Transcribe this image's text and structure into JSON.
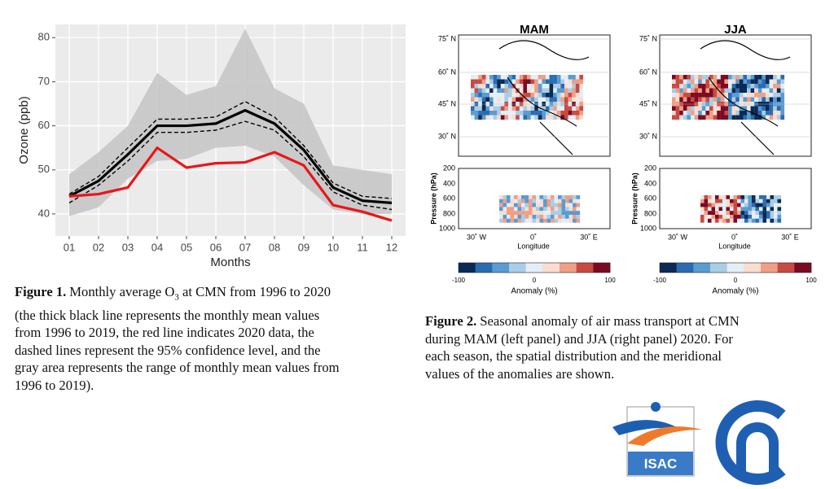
{
  "chart_data": {
    "type": "line",
    "xlabel": "Months",
    "ylabel": "Ozone (ppb)",
    "categories": [
      "01",
      "02",
      "03",
      "04",
      "05",
      "06",
      "07",
      "08",
      "09",
      "10",
      "11",
      "12"
    ],
    "range": {
      "color": "#c4c4c4",
      "lower": [
        39.5,
        41.5,
        48,
        52,
        52.5,
        55,
        55.5,
        53,
        46.5,
        41,
        40,
        40
      ],
      "upper": [
        49,
        54,
        60,
        72,
        67,
        69,
        82,
        68.5,
        65,
        51,
        50,
        49
      ]
    },
    "series": [
      {
        "color": "#000000",
        "dashed": true,
        "values": [
          44.5,
          48.5,
          55,
          61.5,
          61.5,
          62,
          65.5,
          62,
          55.5,
          47,
          44,
          43.5
        ]
      },
      {
        "color": "#000000",
        "dashed": true,
        "values": [
          42.5,
          46.5,
          52,
          58.5,
          58.5,
          59,
          61,
          59,
          53,
          45,
          42,
          41
        ]
      },
      {
        "color": "#000000",
        "dashed": false,
        "values": [
          44,
          47.5,
          53.5,
          60,
          60,
          60.5,
          63.5,
          60.5,
          54.5,
          46,
          43,
          42.5
        ]
      },
      {
        "color": "#e8161b",
        "dashed": false,
        "values": [
          44,
          44.5,
          46,
          55,
          50.5,
          51.5,
          51.7,
          54,
          51,
          42,
          40.5,
          38.5
        ]
      }
    ],
    "ylim": [
      35,
      83
    ],
    "yticks": [
      40,
      50,
      60,
      70,
      80
    ],
    "grid": true
  },
  "figure1_caption": {
    "label": "Figure 1.",
    "text_before": "Monthly average O",
    "subscript": "3",
    "text_after": " at CMN from 1996 to 2020",
    "lines": [
      "(the thick black line represents the monthly mean values",
      "from 1996 to 2019, the red line indicates 2020 data, the",
      "dashed lines represent the 95% confidence level, and the",
      "gray area represents the range of monthly mean values from",
      "1996 to 2019)."
    ]
  },
  "figure2": {
    "panels": [
      "MAM",
      "JJA"
    ],
    "lat_labels": [
      "75˚ N",
      "60˚ N",
      "45˚ N",
      "30˚ N"
    ],
    "pressure_label": "Pressure (hPa)",
    "pressure_ticks": [
      200,
      400,
      600,
      800,
      1000
    ],
    "lon_ticks": [
      "30˚ W",
      "0˚",
      "30˚ E"
    ],
    "lon_label": "Longitude",
    "colorbar_ticks": [
      -100,
      0,
      100
    ],
    "colorbar_label": "Anomaly (%)",
    "colorbar_colors": [
      "#0a2a55",
      "#2b6cb0",
      "#5a9bd0",
      "#a9cde6",
      "#e4eef6",
      "#f8ddd0",
      "#ee9f86",
      "#c94a43",
      "#7a0b22"
    ]
  },
  "figure2_caption": {
    "label": "Figure 2.",
    "lines": [
      "Seasonal anomaly of air mass transport at CMN",
      "during MAM (left panel) and JJA (right panel) 2020. For",
      "each season, the spatial distribution and the meridional",
      "values of the anomalies are shown."
    ]
  },
  "logo": {
    "isac": "ISAC"
  }
}
